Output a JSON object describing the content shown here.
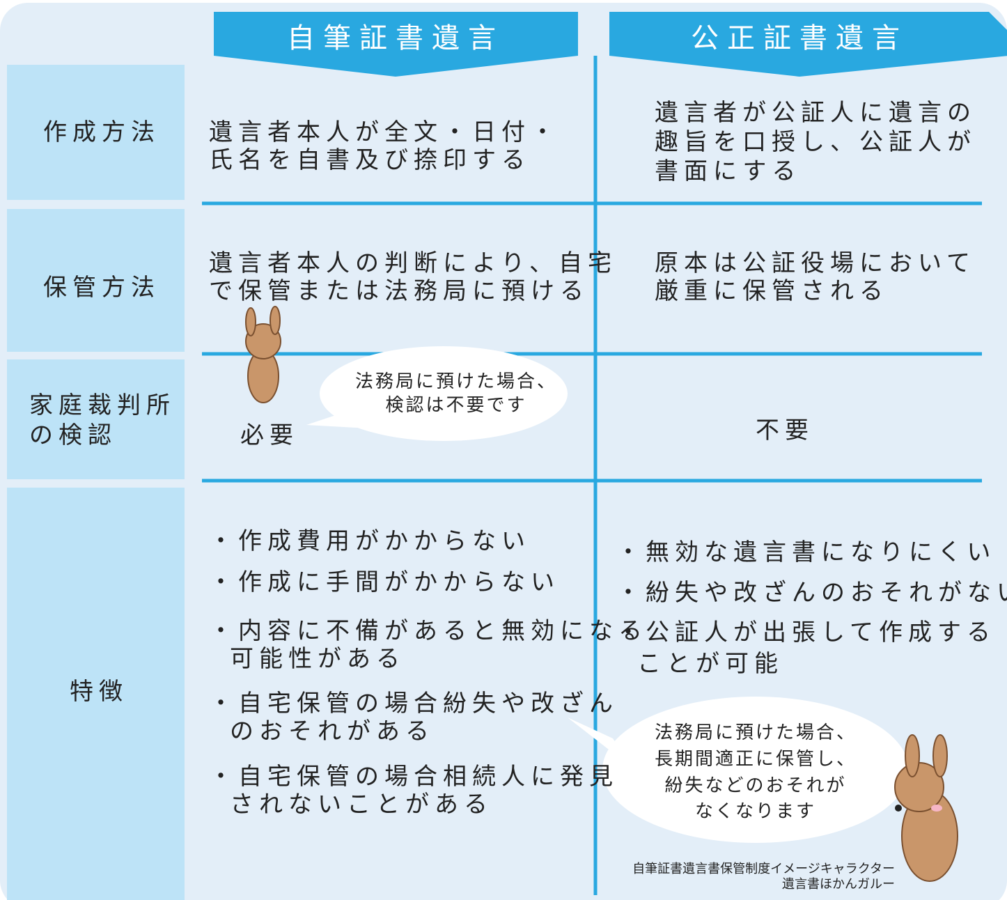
{
  "headers": [
    "自筆証書遺言",
    "公正証書遺言"
  ],
  "rows": [
    {
      "label": [
        "作成方法"
      ],
      "col1": [
        "遺言者本人が全文・日付・",
        "氏名を自書及び捺印する"
      ],
      "col2": [
        "遺言者が公証人に遺言の",
        "趣旨を口授し、公証人が",
        "書面にする"
      ]
    },
    {
      "label": [
        "保管方法"
      ],
      "col1": [
        "遺言者本人の判断により、自宅",
        "で保管または法務局に預ける"
      ],
      "col2": [
        "原本は公証役場において",
        "厳重に保管される"
      ]
    },
    {
      "label": [
        "家庭裁判所",
        "の検認"
      ],
      "col1": [
        "必要"
      ],
      "col2": [
        "不要"
      ]
    },
    {
      "label": [
        "特徴"
      ],
      "col1": [
        "・作成費用がかからない",
        "・作成に手間がかからない",
        "・内容に不備があると無効になる",
        "可能性がある",
        "・自宅保管の場合紛失や改ざん",
        "のおそれがある",
        "・自宅保管の場合相続人に発見",
        "されないことがある"
      ],
      "col2": [
        "・無効な遺言書になりにくい",
        "・紛失や改ざんのおそれがない",
        "・公証人が出張して作成する",
        "ことが可能"
      ]
    }
  ],
  "bubbles": [
    [
      "法務局に預けた場合、",
      "検認は不要です"
    ],
    [
      "法務局に預けた場合、",
      "長期間適正に保管し、",
      "紛失などのおそれが",
      "なくなります"
    ]
  ],
  "caption": [
    "自筆証書遺言書保管制度イメージキャラクター",
    "遺言書ほかんガルー"
  ]
}
